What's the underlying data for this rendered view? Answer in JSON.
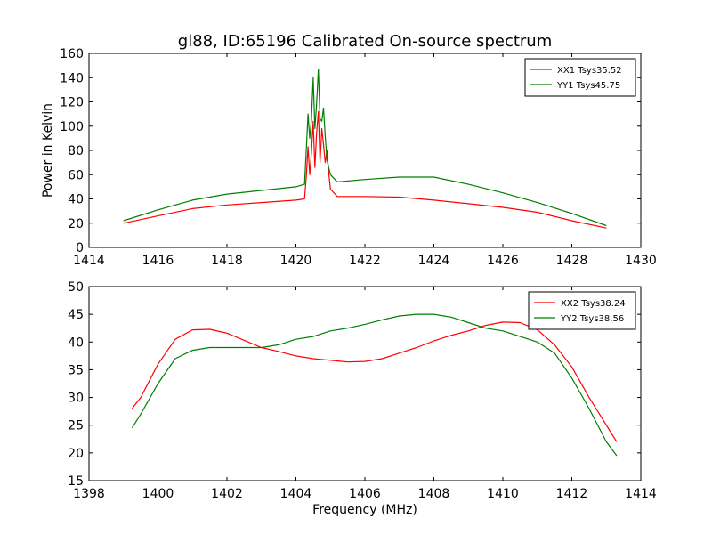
{
  "chart_data": [
    {
      "type": "line",
      "title": "gl88, ID:65196 Calibrated On-source spectrum",
      "xlabel": "",
      "ylabel": "Power in Kelvin",
      "xlim": [
        1414,
        1430
      ],
      "ylim": [
        0,
        160
      ],
      "xticks": [
        1414,
        1416,
        1418,
        1420,
        1422,
        1424,
        1426,
        1428,
        1430
      ],
      "yticks": [
        0,
        20,
        40,
        60,
        80,
        100,
        120,
        140,
        160
      ],
      "grid": false,
      "legend_position": "top-right",
      "series": [
        {
          "name": "XX1 Tsys35.52",
          "color": "#ff0000",
          "points": [
            [
              1415.0,
              20
            ],
            [
              1416.0,
              26
            ],
            [
              1417.0,
              32
            ],
            [
              1418.0,
              35
            ],
            [
              1419.0,
              37
            ],
            [
              1420.0,
              39
            ],
            [
              1420.25,
              40
            ],
            [
              1420.3,
              58
            ],
            [
              1420.35,
              83
            ],
            [
              1420.4,
              60
            ],
            [
              1420.45,
              78
            ],
            [
              1420.5,
              104
            ],
            [
              1420.55,
              66
            ],
            [
              1420.6,
              94
            ],
            [
              1420.65,
              112
            ],
            [
              1420.7,
              70
            ],
            [
              1420.75,
              98
            ],
            [
              1420.8,
              85
            ],
            [
              1420.85,
              70
            ],
            [
              1420.9,
              80
            ],
            [
              1420.95,
              62
            ],
            [
              1421.0,
              48
            ],
            [
              1421.2,
              42
            ],
            [
              1422.0,
              42
            ],
            [
              1423.0,
              41.5
            ],
            [
              1424.0,
              39
            ],
            [
              1425.0,
              36
            ],
            [
              1426.0,
              33
            ],
            [
              1427.0,
              29
            ],
            [
              1428.0,
              22
            ],
            [
              1429.0,
              16
            ]
          ]
        },
        {
          "name": "YY1 Tsys45.75",
          "color": "#007f00",
          "points": [
            [
              1415.0,
              22
            ],
            [
              1416.0,
              31
            ],
            [
              1417.0,
              39
            ],
            [
              1418.0,
              44
            ],
            [
              1419.0,
              47
            ],
            [
              1420.0,
              50
            ],
            [
              1420.25,
              52
            ],
            [
              1420.3,
              80
            ],
            [
              1420.35,
              110
            ],
            [
              1420.4,
              90
            ],
            [
              1420.45,
              105
            ],
            [
              1420.5,
              140
            ],
            [
              1420.55,
              98
            ],
            [
              1420.6,
              118
            ],
            [
              1420.65,
              147
            ],
            [
              1420.7,
              106
            ],
            [
              1420.75,
              104
            ],
            [
              1420.8,
              115
            ],
            [
              1420.85,
              92
            ],
            [
              1420.9,
              72
            ],
            [
              1420.95,
              66
            ],
            [
              1421.0,
              60
            ],
            [
              1421.2,
              54
            ],
            [
              1422.0,
              56
            ],
            [
              1423.0,
              58
            ],
            [
              1424.0,
              58
            ],
            [
              1425.0,
              52
            ],
            [
              1426.0,
              45
            ],
            [
              1427.0,
              37
            ],
            [
              1428.0,
              28
            ],
            [
              1429.0,
              18
            ]
          ]
        }
      ]
    },
    {
      "type": "line",
      "title": "",
      "xlabel": "Frequency (MHz)",
      "ylabel": "",
      "xlim": [
        1398,
        1414
      ],
      "ylim": [
        15,
        50
      ],
      "xticks": [
        1398,
        1400,
        1402,
        1404,
        1406,
        1408,
        1410,
        1412,
        1414
      ],
      "yticks": [
        15,
        20,
        25,
        30,
        35,
        40,
        45,
        50
      ],
      "grid": false,
      "legend_position": "top-right",
      "series": [
        {
          "name": "XX2 Tsys38.24",
          "color": "#ff0000",
          "points": [
            [
              1399.25,
              28
            ],
            [
              1399.5,
              30
            ],
            [
              1400.0,
              36
            ],
            [
              1400.5,
              40.5
            ],
            [
              1401.0,
              42.2
            ],
            [
              1401.5,
              42.3
            ],
            [
              1402.0,
              41.6
            ],
            [
              1402.5,
              40.3
            ],
            [
              1403.0,
              39
            ],
            [
              1403.5,
              38.3
            ],
            [
              1404.0,
              37.5
            ],
            [
              1404.5,
              37
            ],
            [
              1405.0,
              36.7
            ],
            [
              1405.5,
              36.4
            ],
            [
              1406.0,
              36.5
            ],
            [
              1406.5,
              37
            ],
            [
              1407.0,
              38
            ],
            [
              1407.5,
              39
            ],
            [
              1408.0,
              40.2
            ],
            [
              1408.5,
              41.2
            ],
            [
              1409.0,
              42
            ],
            [
              1409.5,
              43
            ],
            [
              1410.0,
              43.6
            ],
            [
              1410.5,
              43.5
            ],
            [
              1411.0,
              42.2
            ],
            [
              1411.5,
              39.5
            ],
            [
              1412.0,
              35.5
            ],
            [
              1412.5,
              30
            ],
            [
              1413.0,
              25
            ],
            [
              1413.3,
              22
            ]
          ]
        },
        {
          "name": "YY2 Tsys38.56",
          "color": "#007f00",
          "points": [
            [
              1399.25,
              24.5
            ],
            [
              1399.5,
              27
            ],
            [
              1400.0,
              32.5
            ],
            [
              1400.5,
              37
            ],
            [
              1401.0,
              38.5
            ],
            [
              1401.5,
              39
            ],
            [
              1402.0,
              39
            ],
            [
              1402.5,
              39
            ],
            [
              1403.0,
              39
            ],
            [
              1403.5,
              39.5
            ],
            [
              1404.0,
              40.5
            ],
            [
              1404.5,
              41
            ],
            [
              1405.0,
              42
            ],
            [
              1405.5,
              42.5
            ],
            [
              1406.0,
              43.2
            ],
            [
              1406.5,
              44
            ],
            [
              1407.0,
              44.7
            ],
            [
              1407.5,
              45
            ],
            [
              1408.0,
              45
            ],
            [
              1408.5,
              44.5
            ],
            [
              1409.0,
              43.5
            ],
            [
              1409.5,
              42.5
            ],
            [
              1410.0,
              42
            ],
            [
              1410.5,
              41
            ],
            [
              1411.0,
              40
            ],
            [
              1411.5,
              38
            ],
            [
              1412.0,
              33.5
            ],
            [
              1412.5,
              28
            ],
            [
              1413.0,
              22
            ],
            [
              1413.3,
              19.5
            ]
          ]
        }
      ]
    }
  ]
}
